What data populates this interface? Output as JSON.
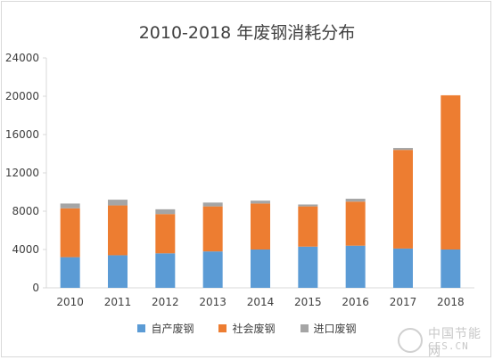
{
  "chart_data": {
    "type": "bar",
    "stacked": true,
    "title": "2010-2018 年废钢消耗分布",
    "categories": [
      "2010",
      "2011",
      "2012",
      "2013",
      "2014",
      "2015",
      "2016",
      "2017",
      "2018"
    ],
    "series": [
      {
        "name": "自产废钢",
        "color": "#5b9bd5",
        "values": [
          3200,
          3400,
          3600,
          3800,
          4000,
          4300,
          4400,
          4100,
          4000
        ]
      },
      {
        "name": "社会废钢",
        "color": "#ed7d31",
        "values": [
          5100,
          5200,
          4100,
          4700,
          4800,
          4200,
          4600,
          10300,
          16100
        ]
      },
      {
        "name": "进口废钢",
        "color": "#a5a5a5",
        "values": [
          500,
          600,
          500,
          400,
          300,
          200,
          300,
          200,
          0
        ]
      }
    ],
    "yticks": [
      "0",
      "4000",
      "8000",
      "12000",
      "16000",
      "20000",
      "24000"
    ],
    "ylim": [
      0,
      24000
    ],
    "grid": false,
    "legend_position": "bottom"
  },
  "watermark": {
    "line1": "中国节能网",
    "line2": "CES.CN"
  }
}
